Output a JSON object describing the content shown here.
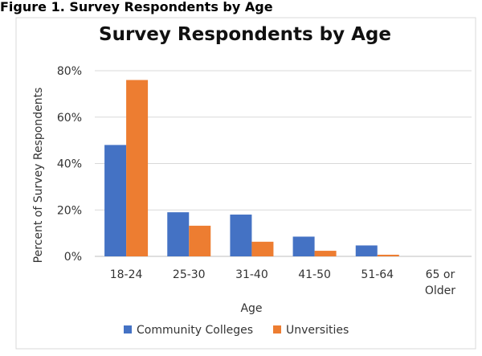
{
  "figure_caption": "Figure 1. Survey Respondents by Age",
  "chart_data": {
    "type": "bar",
    "title": "Survey Respondents by Age",
    "xlabel": "Age",
    "ylabel": "Percent of Survey Respondents",
    "categories": [
      "18-24",
      "25-30",
      "31-40",
      "41-50",
      "51-64",
      "65 or Older"
    ],
    "series": [
      {
        "name": "Community Colleges",
        "values": [
          48,
          19,
          18,
          8.5,
          4.7,
          0
        ],
        "color": "#4472c4"
      },
      {
        "name": "Unversities",
        "values": [
          76,
          13.2,
          6.3,
          2.4,
          0.7,
          0
        ],
        "color": "#ed7d31"
      }
    ],
    "ylim": [
      0,
      80
    ],
    "yticks": [
      "0%",
      "20%",
      "40%",
      "60%",
      "80%"
    ],
    "ytick_values": [
      0,
      20,
      40,
      60,
      80
    ],
    "grid": true,
    "legend_position": "bottom"
  }
}
